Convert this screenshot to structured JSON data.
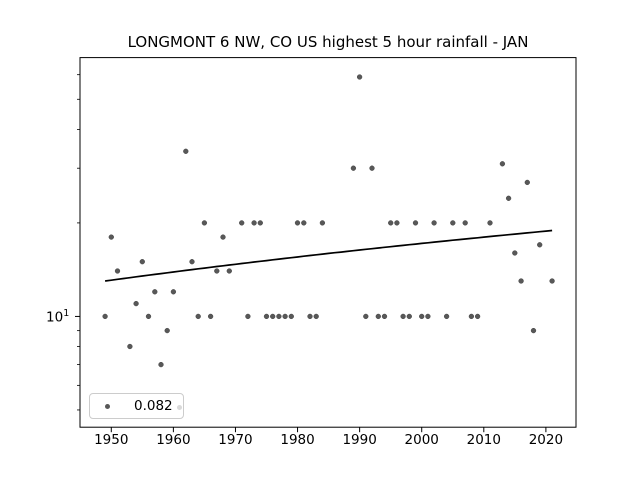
{
  "title": "LONGMONT 6 NW, CO US highest 5 hour rainfall - JAN",
  "legend": {
    "label": "0.082"
  },
  "y_axis": {
    "tick_base": "10",
    "tick_exp": "1"
  },
  "colors": {
    "marker": "#585858",
    "faint_marker": "#d9d9d9",
    "trend_line": "#000000",
    "frame": "#000000",
    "text": "#000000",
    "legend_border": "#cccccc"
  },
  "chart_data": {
    "type": "scatter",
    "title": "LONGMONT 6 NW, CO US highest 5 hour rainfall - JAN",
    "xlabel": "",
    "ylabel": "",
    "y_scale": "log",
    "xlim": [
      1944.96,
      2024.85
    ],
    "ylim": [
      4.4,
      68.1
    ],
    "x_ticks": [
      1950,
      1960,
      1970,
      1980,
      1990,
      2000,
      2010,
      2020
    ],
    "y_major_ticks": [
      10
    ],
    "y_minor_ticks": [
      5,
      6,
      7,
      8,
      9,
      20,
      30,
      40,
      50,
      60
    ],
    "legend_position": "lower left",
    "grid": false,
    "years": [
      1949,
      1950,
      1951,
      1953,
      1954,
      1955,
      1956,
      1957,
      1958,
      1959,
      1960,
      1962,
      1963,
      1964,
      1965,
      1966,
      1967,
      1968,
      1969,
      1971,
      1972,
      1973,
      1974,
      1975,
      1976,
      1977,
      1978,
      1979,
      1980,
      1981,
      1982,
      1983,
      1984,
      1989,
      1990,
      1991,
      1992,
      1993,
      1994,
      1995,
      1996,
      1997,
      1998,
      1999,
      2000,
      2001,
      2002,
      2004,
      2005,
      2007,
      2008,
      2009,
      2011,
      2013,
      2014,
      2015,
      2016,
      2017,
      2018,
      2019,
      2021
    ],
    "values": [
      10,
      18,
      14,
      8,
      11,
      15,
      10,
      12,
      7,
      9,
      12,
      34,
      15,
      10,
      20,
      10,
      14,
      18,
      14,
      20,
      10,
      20,
      20,
      10,
      10,
      10,
      10,
      10,
      20,
      20,
      10,
      10,
      20,
      30,
      59,
      10,
      30,
      10,
      10,
      20,
      20,
      10,
      10,
      20,
      10,
      10,
      20,
      10,
      20,
      20,
      10,
      10,
      20,
      31,
      24,
      16,
      13,
      27,
      9,
      17,
      13
    ],
    "trend": {
      "year_start": 1949,
      "year_end": 2021,
      "value_start": 13.0,
      "value_end": 18.9,
      "slope_per_year": 0.082,
      "label": "0.082"
    }
  }
}
